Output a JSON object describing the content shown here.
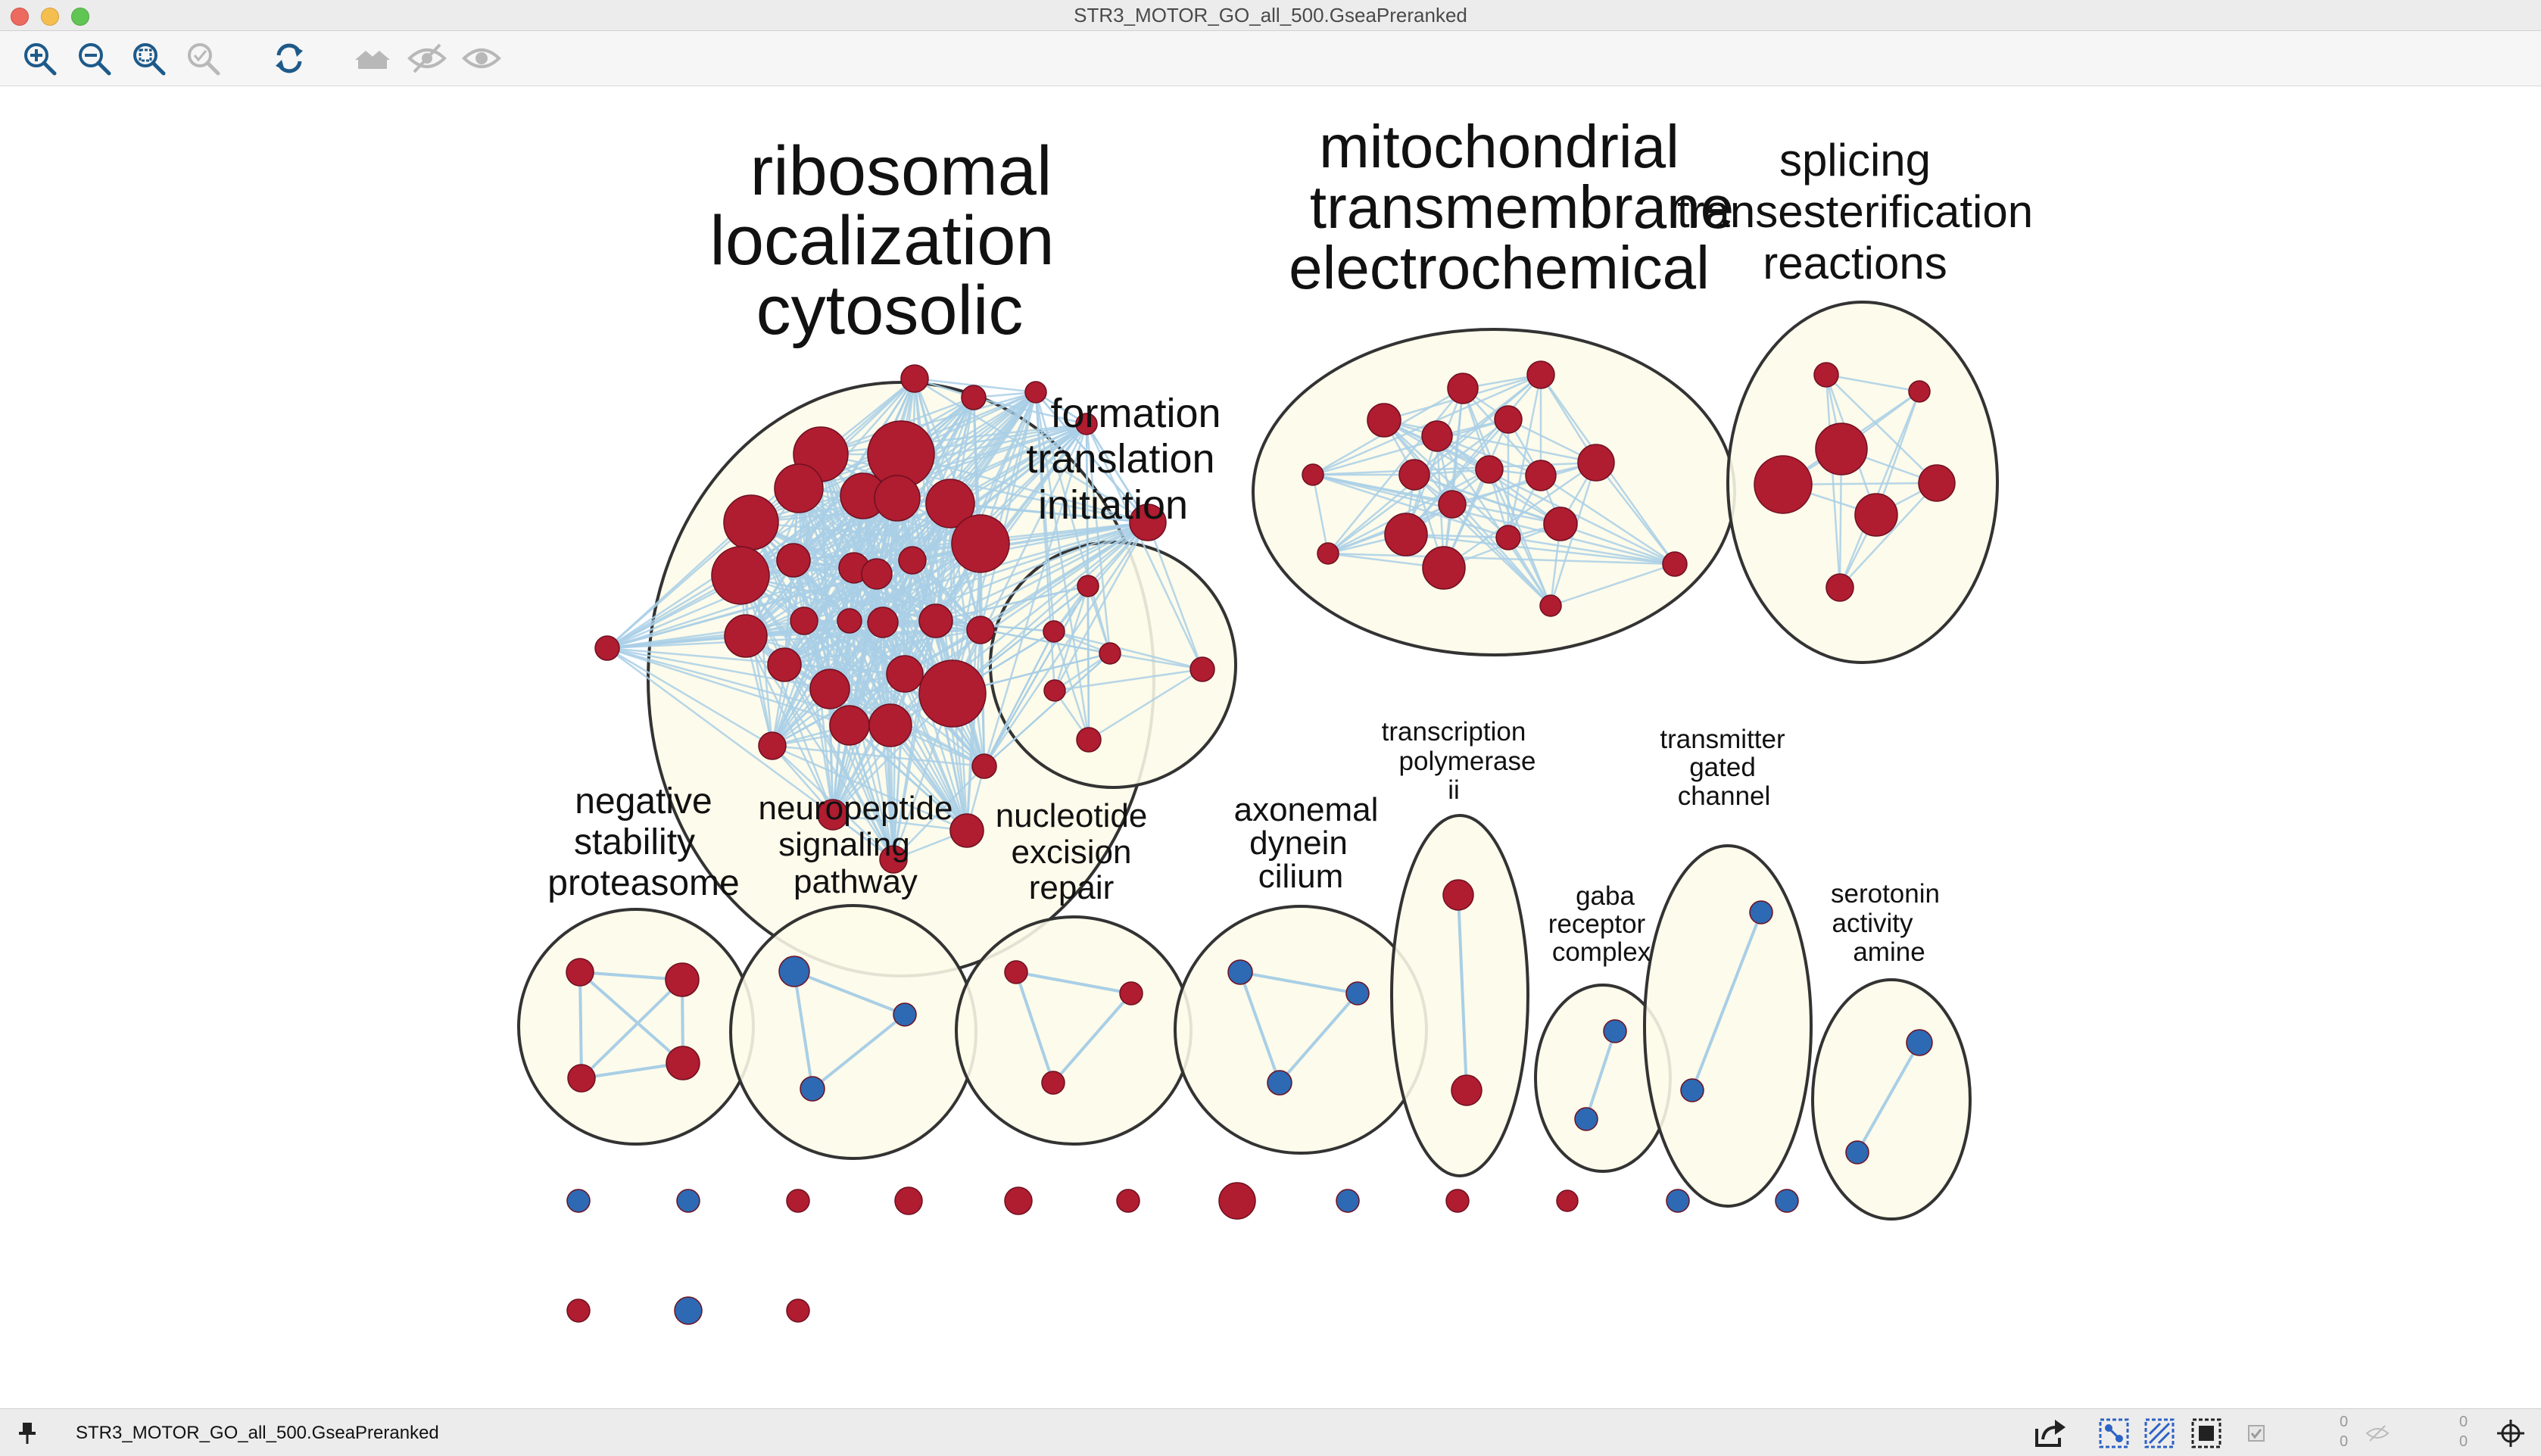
{
  "window": {
    "title": "STR3_MOTOR_GO_all_500.GseaPreranked"
  },
  "toolbar": {
    "buttons": [
      {
        "name": "zoom-in-icon"
      },
      {
        "name": "zoom-out-icon"
      },
      {
        "name": "zoom-fit-icon"
      },
      {
        "name": "zoom-selected-icon"
      },
      {
        "name": "refresh-icon"
      },
      {
        "name": "show-all-icon"
      },
      {
        "name": "hide-icon"
      },
      {
        "name": "show-icon"
      }
    ]
  },
  "network": {
    "colors": {
      "red_node": "#b01c30",
      "blue_node": "#2e69b3",
      "edge": "#a9cfe6",
      "cluster_fill": "#fdfbe8",
      "cluster_stroke": "#333333"
    },
    "cluster_labels": {
      "ribosomal": [
        "ribosomal",
        "localization",
        "cytosolic"
      ],
      "mitochondrial": [
        "mitochondrial",
        "transmembrane",
        "electrochemical"
      ],
      "splicing": [
        "splicing",
        "transesterification",
        "reactions"
      ],
      "formation": [
        "formation",
        "translation",
        "initiation"
      ],
      "negative": [
        "negative",
        "stability",
        "proteasome"
      ],
      "neuropeptide": [
        "neuropeptide",
        "signaling",
        "pathway"
      ],
      "nucleotide": [
        "nucleotide",
        "excision",
        "repair"
      ],
      "axonemal": [
        "axonemal",
        "dynein",
        "cilium"
      ],
      "transcription": [
        "transcription",
        "polymerase",
        "ii"
      ],
      "gaba": [
        "gaba",
        "receptor",
        "complex"
      ],
      "transmitter": [
        "transmitter",
        "gated",
        "channel"
      ],
      "serotonin": [
        "serotonin",
        "activity",
        "amine"
      ]
    }
  },
  "statusbar": {
    "network_name": "STR3_MOTOR_GO_all_500.GseaPreranked",
    "counters": [
      "0",
      "0",
      "0",
      "0"
    ]
  }
}
